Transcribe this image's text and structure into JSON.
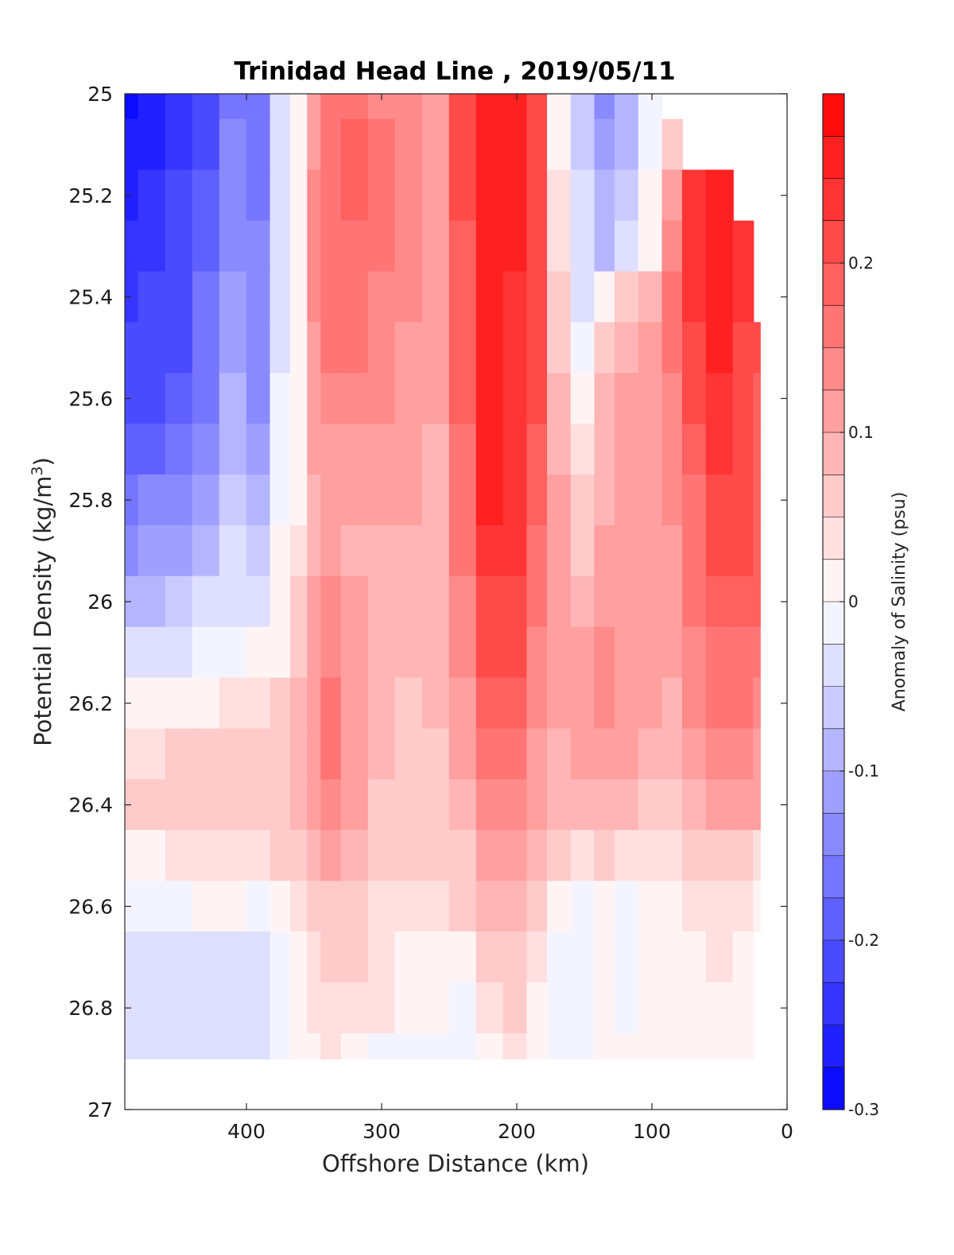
{
  "chart_data": {
    "type": "heatmap",
    "subtype": "filled-contour section",
    "title": "Trinidad Head Line , 2019/05/11",
    "xlabel": "Offshore Distance (km)",
    "ylabel": "Potential Density (kg/m",
    "ylabel_superscript": "3",
    "ylabel_close": ")",
    "xlim": [
      490,
      0
    ],
    "x_reversed": true,
    "ylim": [
      25,
      27
    ],
    "y_reversed": true,
    "x_ticks": [
      400,
      300,
      200,
      100,
      0
    ],
    "x_tick_labels": [
      "400",
      "300",
      "200",
      "100",
      "0"
    ],
    "y_ticks": [
      25,
      25.2,
      25.4,
      25.6,
      25.8,
      26,
      26.2,
      26.4,
      26.6,
      26.8,
      27
    ],
    "y_tick_labels": [
      "25",
      "25.2",
      "25.4",
      "25.6",
      "25.8",
      "26",
      "26.2",
      "26.4",
      "26.6",
      "26.8",
      "27"
    ],
    "colorbar": {
      "label": "Anomaly of Salinity (psu)",
      "range": [
        -0.3,
        0.3
      ],
      "levels": 24,
      "tick_values": [
        -0.3,
        -0.2,
        -0.1,
        0,
        0.1,
        0.2
      ],
      "tick_labels": [
        "-0.3",
        "-0.2",
        "-0.1",
        "0",
        "0.1",
        "0.2"
      ],
      "min_color": "#0000ff",
      "mid_color": "#ffffff",
      "max_color": "#ff0000"
    },
    "contour_lines": "zero anomaly contour (black)",
    "data_extent": {
      "sigma_max_offshore": 26.9,
      "nearshore_edge_km": 20
    },
    "grid": false,
    "anomaly_grid": {
      "x_km": [
        490,
        470,
        450,
        430,
        410,
        390,
        375,
        360,
        350,
        340,
        320,
        300,
        280,
        260,
        240,
        220,
        200,
        185,
        170,
        150,
        135,
        120,
        100,
        85,
        70,
        50,
        30,
        20
      ],
      "y_sigma": [
        25.0,
        25.1,
        25.2,
        25.3,
        25.4,
        25.5,
        25.6,
        25.7,
        25.8,
        25.9,
        26.0,
        26.1,
        26.2,
        26.3,
        26.4,
        26.5,
        26.6,
        26.7,
        26.8,
        26.9
      ],
      "values": [
        [
          -0.28,
          -0.26,
          -0.24,
          -0.22,
          -0.16,
          -0.16,
          -0.04,
          0.0,
          0.1,
          0.15,
          0.15,
          0.14,
          0.14,
          0.1,
          0.2,
          0.25,
          0.25,
          0.22,
          0.02,
          -0.07,
          -0.13,
          -0.09,
          -0.02,
          null,
          null,
          null,
          null,
          null
        ],
        [
          -0.27,
          -0.25,
          -0.23,
          -0.2,
          -0.15,
          -0.17,
          -0.04,
          0.0,
          0.12,
          0.17,
          0.18,
          0.15,
          0.14,
          0.1,
          0.2,
          0.26,
          0.26,
          0.22,
          0.02,
          -0.06,
          -0.12,
          -0.08,
          -0.02,
          0.05,
          null,
          null,
          null,
          null
        ],
        [
          -0.25,
          -0.24,
          -0.22,
          -0.19,
          -0.14,
          -0.16,
          -0.03,
          0.0,
          0.13,
          0.17,
          0.18,
          0.16,
          0.14,
          0.1,
          0.2,
          0.26,
          0.25,
          0.22,
          0.03,
          -0.05,
          -0.1,
          -0.06,
          0.0,
          0.12,
          0.24,
          0.26,
          null,
          null
        ],
        [
          -0.24,
          -0.23,
          -0.21,
          -0.18,
          -0.13,
          -0.15,
          -0.03,
          0.0,
          0.13,
          0.16,
          0.17,
          0.15,
          0.13,
          0.1,
          0.19,
          0.26,
          0.25,
          0.21,
          0.04,
          -0.04,
          -0.08,
          -0.04,
          0.02,
          0.14,
          0.24,
          0.26,
          0.24,
          null
        ],
        [
          -0.23,
          -0.22,
          -0.2,
          -0.17,
          -0.12,
          -0.14,
          -0.03,
          0.0,
          0.13,
          0.16,
          0.16,
          0.14,
          0.13,
          0.1,
          0.19,
          0.26,
          0.24,
          0.2,
          0.05,
          -0.03,
          0.02,
          0.05,
          0.08,
          0.16,
          0.24,
          0.25,
          0.23,
          null
        ],
        [
          -0.22,
          -0.21,
          -0.2,
          -0.17,
          -0.11,
          -0.14,
          -0.03,
          0.0,
          0.12,
          0.15,
          0.15,
          0.14,
          0.12,
          0.1,
          0.19,
          0.26,
          0.24,
          0.2,
          0.06,
          -0.02,
          0.06,
          0.08,
          0.1,
          0.15,
          0.22,
          0.25,
          0.22,
          0.2
        ],
        [
          -0.21,
          -0.2,
          -0.19,
          -0.16,
          -0.1,
          -0.13,
          -0.02,
          0.0,
          0.11,
          0.14,
          0.14,
          0.13,
          0.12,
          0.1,
          0.18,
          0.26,
          0.24,
          0.2,
          0.08,
          0.01,
          0.08,
          0.1,
          0.11,
          0.14,
          0.2,
          0.24,
          0.22,
          0.19
        ],
        [
          -0.19,
          -0.18,
          -0.17,
          -0.14,
          -0.09,
          -0.12,
          -0.02,
          0.0,
          0.1,
          0.12,
          0.12,
          0.12,
          0.11,
          0.09,
          0.17,
          0.25,
          0.24,
          0.19,
          0.09,
          0.04,
          0.09,
          0.1,
          0.11,
          0.13,
          0.18,
          0.23,
          0.21,
          0.19
        ],
        [
          -0.16,
          -0.15,
          -0.14,
          -0.12,
          -0.07,
          -0.1,
          -0.01,
          0.02,
          0.09,
          0.11,
          0.1,
          0.1,
          0.1,
          0.09,
          0.16,
          0.25,
          0.24,
          0.18,
          0.1,
          0.06,
          0.09,
          0.1,
          0.11,
          0.13,
          0.17,
          0.22,
          0.21,
          0.19
        ],
        [
          -0.13,
          -0.12,
          -0.11,
          -0.09,
          -0.05,
          -0.07,
          0.0,
          0.04,
          0.09,
          0.11,
          0.09,
          0.09,
          0.09,
          0.09,
          0.15,
          0.24,
          0.23,
          0.17,
          0.1,
          0.07,
          0.1,
          0.1,
          0.11,
          0.12,
          0.16,
          0.21,
          0.2,
          0.19
        ],
        [
          -0.09,
          -0.08,
          -0.07,
          -0.05,
          -0.03,
          -0.03,
          0.01,
          0.06,
          0.1,
          0.13,
          0.1,
          0.08,
          0.08,
          0.09,
          0.14,
          0.22,
          0.22,
          0.16,
          0.1,
          0.09,
          0.12,
          0.11,
          0.1,
          0.11,
          0.15,
          0.19,
          0.19,
          0.19
        ],
        [
          -0.05,
          -0.05,
          -0.04,
          -0.02,
          -0.01,
          0.0,
          0.02,
          0.07,
          0.11,
          0.14,
          0.11,
          0.08,
          0.08,
          0.08,
          0.13,
          0.2,
          0.2,
          0.14,
          0.1,
          0.1,
          0.13,
          0.12,
          0.1,
          0.1,
          0.14,
          0.17,
          0.17,
          0.16
        ],
        [
          0.0,
          0.0,
          0.01,
          0.02,
          0.03,
          0.04,
          0.05,
          0.08,
          0.12,
          0.15,
          0.12,
          0.08,
          0.07,
          0.08,
          0.12,
          0.18,
          0.18,
          0.13,
          0.1,
          0.11,
          0.14,
          0.12,
          0.1,
          0.09,
          0.13,
          0.15,
          0.15,
          0.14
        ],
        [
          0.04,
          0.04,
          0.05,
          0.05,
          0.06,
          0.06,
          0.07,
          0.08,
          0.12,
          0.15,
          0.12,
          0.08,
          0.07,
          0.07,
          0.11,
          0.16,
          0.16,
          0.12,
          0.09,
          0.1,
          0.12,
          0.11,
          0.09,
          0.08,
          0.1,
          0.13,
          0.13,
          0.12
        ],
        [
          0.05,
          0.05,
          0.06,
          0.06,
          0.06,
          0.07,
          0.07,
          0.08,
          0.11,
          0.14,
          0.11,
          0.07,
          0.06,
          0.07,
          0.09,
          0.13,
          0.13,
          0.1,
          0.08,
          0.08,
          0.09,
          0.08,
          0.07,
          0.07,
          0.08,
          0.1,
          0.1,
          0.1
        ],
        [
          0.01,
          0.02,
          0.03,
          0.03,
          0.03,
          0.04,
          0.05,
          0.06,
          0.08,
          0.1,
          0.08,
          0.06,
          0.05,
          0.05,
          0.07,
          0.1,
          0.1,
          0.08,
          0.05,
          0.04,
          0.05,
          0.04,
          0.04,
          0.04,
          0.05,
          0.06,
          0.05,
          0.04
        ],
        [
          -0.02,
          -0.01,
          -0.01,
          0.0,
          0.0,
          -0.01,
          0.01,
          0.03,
          0.06,
          0.07,
          0.06,
          0.04,
          0.03,
          0.03,
          0.05,
          0.08,
          0.08,
          0.05,
          0.01,
          -0.01,
          0.01,
          -0.01,
          0.01,
          0.02,
          0.03,
          0.04,
          0.03,
          0.02
        ],
        [
          -0.04,
          -0.04,
          -0.04,
          -0.03,
          -0.03,
          -0.03,
          -0.01,
          0.01,
          0.04,
          0.05,
          0.05,
          0.03,
          0.02,
          0.01,
          0.02,
          0.06,
          0.06,
          0.03,
          -0.01,
          -0.01,
          0.0,
          -0.01,
          0.0,
          0.01,
          0.02,
          0.03,
          0.02,
          null
        ],
        [
          -0.04,
          -0.05,
          -0.05,
          -0.04,
          -0.04,
          -0.03,
          -0.01,
          0.0,
          0.03,
          0.04,
          0.04,
          0.03,
          0.02,
          0.0,
          -0.01,
          0.04,
          0.05,
          0.02,
          -0.02,
          -0.02,
          0.01,
          -0.01,
          0.0,
          0.01,
          0.02,
          0.02,
          0.01,
          null
        ],
        [
          -0.04,
          -0.04,
          -0.04,
          -0.04,
          -0.03,
          -0.03,
          -0.01,
          0.0,
          0.02,
          0.03,
          0.02,
          -0.01,
          -0.01,
          -0.01,
          -0.01,
          0.02,
          0.03,
          0.01,
          -0.01,
          -0.01,
          0.0,
          0.0,
          0.0,
          0.01,
          0.02,
          0.02,
          0.01,
          null
        ]
      ]
    }
  }
}
